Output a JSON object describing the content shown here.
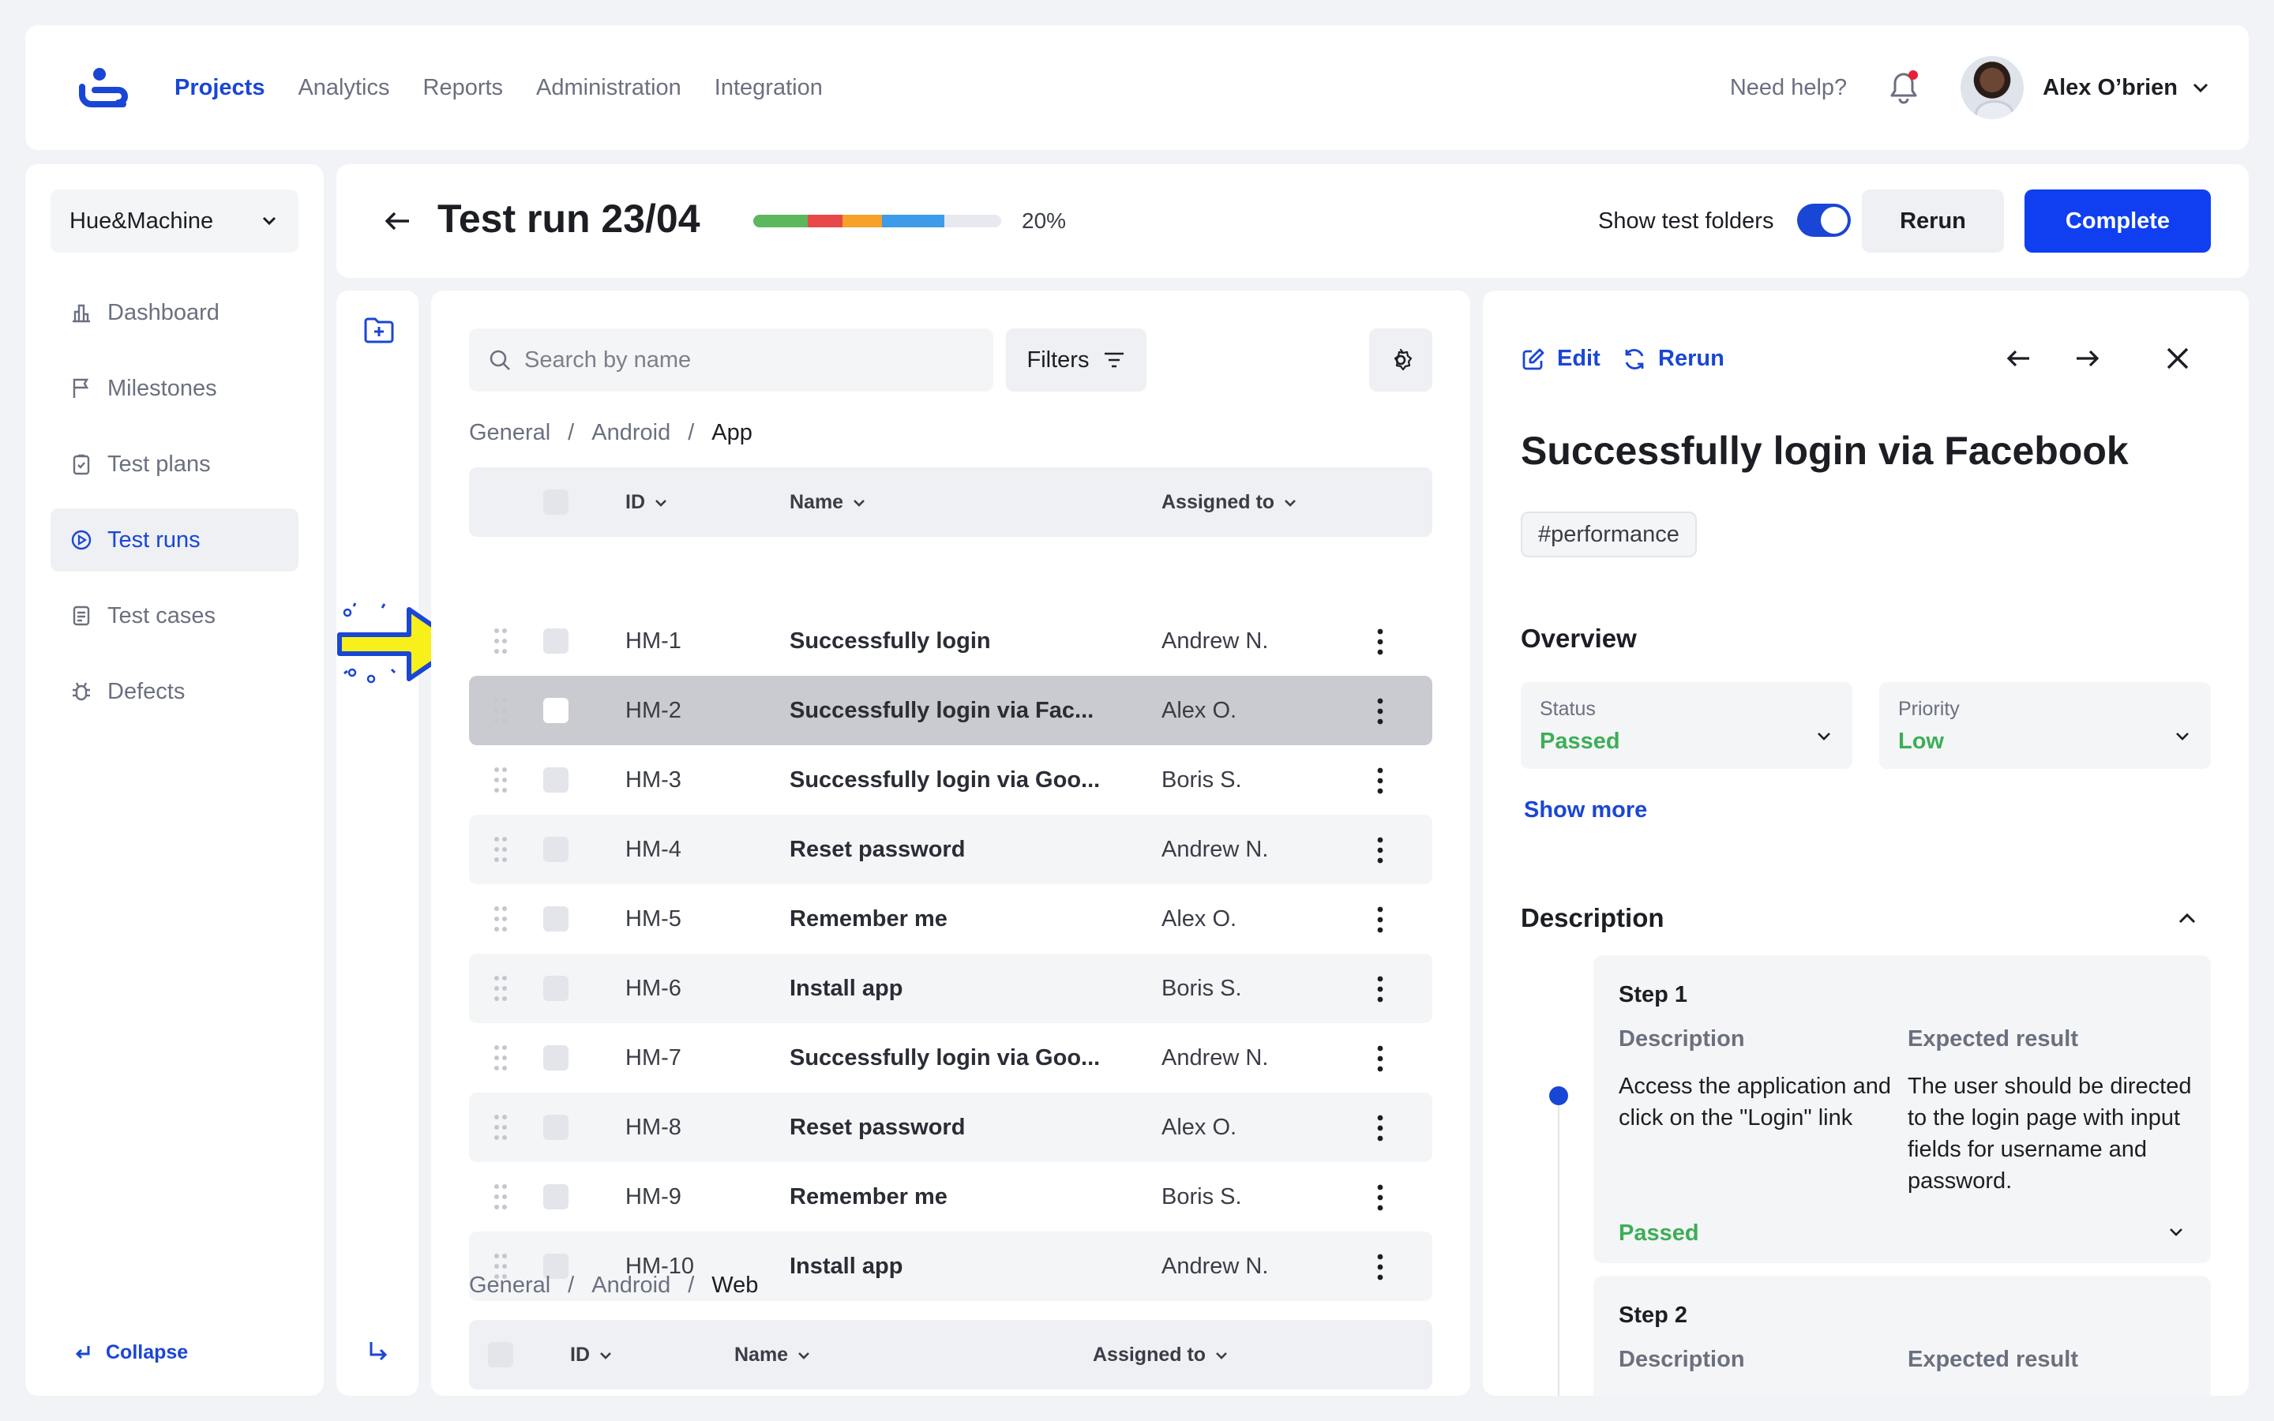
{
  "topbar": {
    "nav": [
      "Projects",
      "Analytics",
      "Reports",
      "Administration",
      "Integration"
    ],
    "help": "Need help?",
    "user_name": "Alex O’brien"
  },
  "sidebar": {
    "workspace": "Hue&Machine",
    "items": [
      {
        "label": "Dashboard",
        "icon": "dashboard-icon"
      },
      {
        "label": "Milestones",
        "icon": "flag-icon"
      },
      {
        "label": "Test plans",
        "icon": "clipboard-icon"
      },
      {
        "label": "Test runs",
        "icon": "play-circle-icon"
      },
      {
        "label": "Test cases",
        "icon": "document-icon"
      },
      {
        "label": "Defects",
        "icon": "bug-icon"
      }
    ],
    "collapse": "Collapse"
  },
  "header": {
    "title": "Test run 23/04",
    "progress_text": "20%",
    "progress_segments": [
      {
        "color": "#5cb85c",
        "fraction": 0.22
      },
      {
        "color": "#e84848",
        "fraction": 0.14
      },
      {
        "color": "#f5a12a",
        "fraction": 0.16
      },
      {
        "color": "#3d9be9",
        "fraction": 0.25
      }
    ],
    "toggle_label": "Show test folders",
    "rerun": "Rerun",
    "complete": "Complete"
  },
  "cases": {
    "search_placeholder": "Search by name",
    "filters": "Filters",
    "crumb1": [
      "General",
      "/",
      "Android",
      "/",
      "App"
    ],
    "crumb2": [
      "General",
      "/",
      "Android",
      "/",
      "Web"
    ],
    "columns": {
      "id": "ID",
      "name": "Name",
      "assigned": "Assigned to"
    },
    "rows": [
      {
        "id": "HM-1",
        "name": "Successfully login",
        "assigned": "Andrew N."
      },
      {
        "id": "HM-2",
        "name": "Successfully login via Fac...",
        "assigned": "Alex O."
      },
      {
        "id": "HM-3",
        "name": "Successfully login via Goo...",
        "assigned": "Boris S."
      },
      {
        "id": "HM-4",
        "name": "Reset password",
        "assigned": "Andrew N."
      },
      {
        "id": "HM-5",
        "name": "Remember me",
        "assigned": "Alex O."
      },
      {
        "id": "HM-6",
        "name": "Install app",
        "assigned": "Boris S."
      },
      {
        "id": "HM-7",
        "name": "Successfully login via Goo...",
        "assigned": "Andrew N."
      },
      {
        "id": "HM-8",
        "name": "Reset password",
        "assigned": "Alex O."
      },
      {
        "id": "HM-9",
        "name": "Remember me",
        "assigned": "Boris S."
      },
      {
        "id": "HM-10",
        "name": "Install app",
        "assigned": "Andrew N."
      }
    ]
  },
  "detail": {
    "edit": "Edit",
    "rerun": "Rerun",
    "title": "Successfully login via Facebook",
    "tag": "#performance",
    "overview": "Overview",
    "status_label": "Status",
    "status_value": "Passed",
    "priority_label": "Priority",
    "priority_value": "Low",
    "show_more": "Show more",
    "description": "Description",
    "steps": [
      {
        "title": "Step 1",
        "desc_h": "Description",
        "exp_h": "Expected result",
        "desc": "Access the application and click on the \"Login\" link",
        "exp": "The user should be directed to the login page with input fields for username and password.",
        "result": "Passed"
      },
      {
        "title": "Step 2",
        "desc_h": "Description",
        "exp_h": "Expected result"
      }
    ]
  },
  "colors": {
    "accent": "#1a46d6",
    "primary_button": "#0f3ff0",
    "passed": "#3dae57",
    "pointer": "#f7f01a"
  }
}
